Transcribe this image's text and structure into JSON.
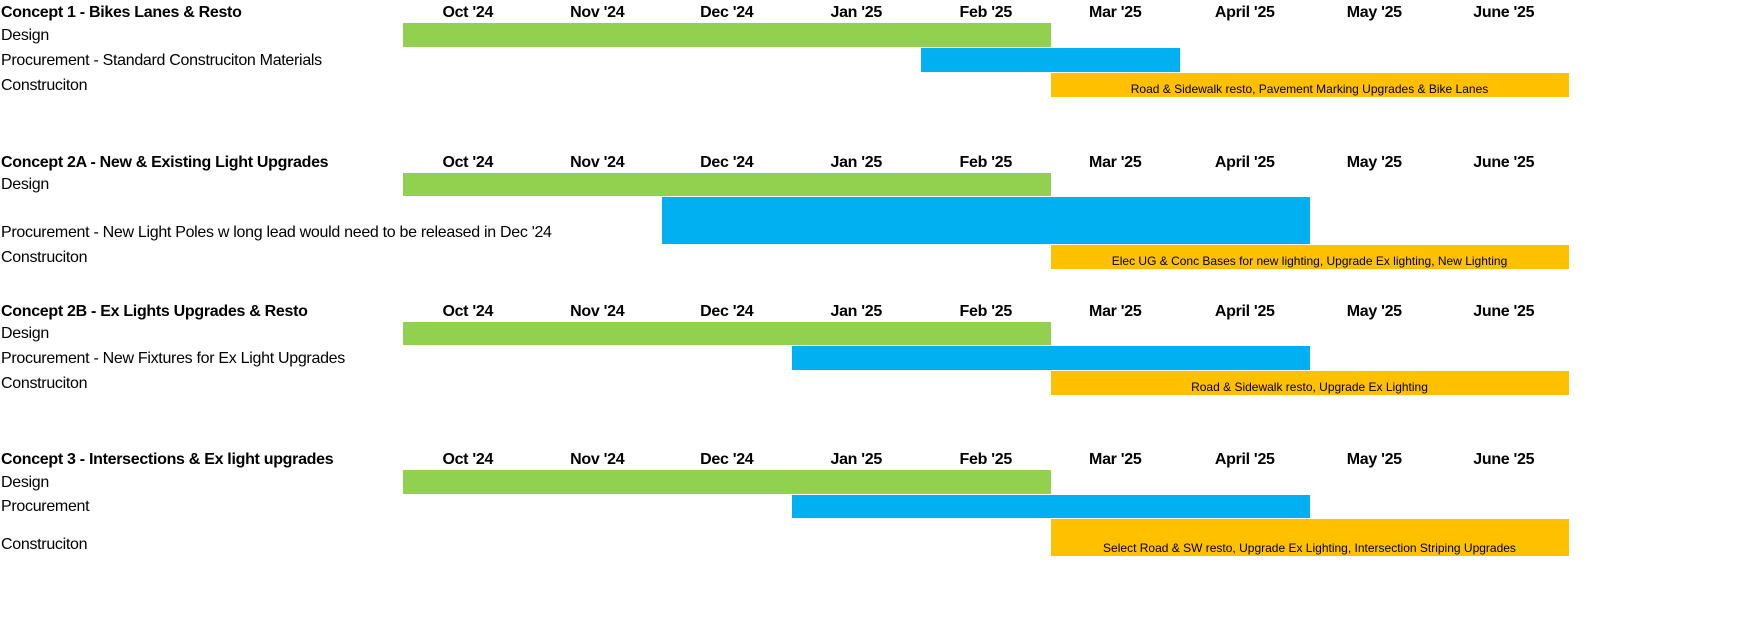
{
  "months": [
    "Oct '24",
    "Nov '24",
    "Dec '24",
    "Jan '25",
    "Feb '25",
    "Mar '25",
    "April '25",
    "May '25",
    "June '25"
  ],
  "concepts": [
    {
      "title": "Concept 1 - Bikes Lanes & Resto",
      "tasks": [
        {
          "label": "Design",
          "start": 0,
          "end": 5,
          "color": "#92d050"
        },
        {
          "label": "Procurement - Standard Construciton Materials",
          "start": 4,
          "end": 6,
          "color": "#00b0f0"
        },
        {
          "label": "Construciton",
          "start": 5,
          "end": 9,
          "color": "#ffc000",
          "note": "Road & Sidewalk resto, Pavement Marking Upgrades & Bike Lanes"
        }
      ]
    },
    {
      "title": "Concept 2A - New & Existing Light Upgrades",
      "tasks": [
        {
          "label": "Design",
          "start": 0,
          "end": 5,
          "color": "#92d050"
        },
        {
          "label": "Procurement - New Light Poles w long lead would need to be released in Dec '24",
          "start": 2,
          "end": 7,
          "color": "#00b0f0"
        },
        {
          "label": "Construciton",
          "start": 5,
          "end": 9,
          "color": "#ffc000",
          "note": "Elec UG & Conc Bases for new lighting, Upgrade Ex lighting, New Lighting"
        }
      ]
    },
    {
      "title": "Concept 2B - Ex Lights Upgrades & Resto",
      "tasks": [
        {
          "label": "Design",
          "start": 0,
          "end": 5,
          "color": "#92d050"
        },
        {
          "label": "Procurement - New Fixtures for Ex Light Upgrades",
          "start": 3,
          "end": 7,
          "color": "#00b0f0"
        },
        {
          "label": "Construciton",
          "start": 5,
          "end": 9,
          "color": "#ffc000",
          "note": "Road & Sidewalk resto, Upgrade Ex Lighting"
        }
      ]
    },
    {
      "title": "Concept 3 - Intersections & Ex light upgrades",
      "tasks": [
        {
          "label": "Design",
          "start": 0,
          "end": 5,
          "color": "#92d050"
        },
        {
          "label": "Procurement",
          "start": 3,
          "end": 7,
          "color": "#00b0f0"
        },
        {
          "label": "Construciton",
          "start": 5,
          "end": 9,
          "color": "#ffc000",
          "note": "Select Road & SW resto, Upgrade Ex Lighting, Intersection Striping Upgrades"
        }
      ]
    }
  ]
}
